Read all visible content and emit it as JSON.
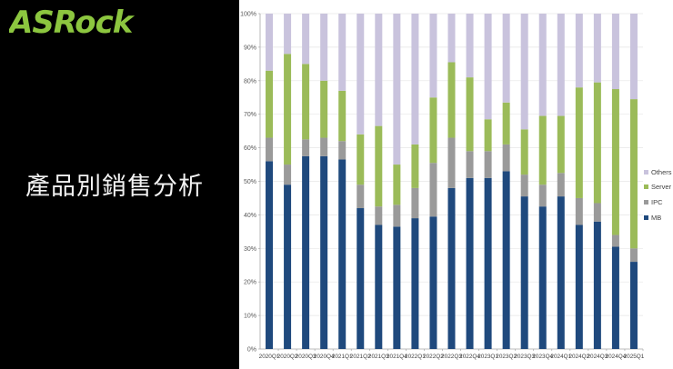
{
  "logo": {
    "text": "ASRock",
    "color": "#8cc63f"
  },
  "slide": {
    "title": "產品別銷售分析"
  },
  "colors": {
    "background": "#000000",
    "chart_background": "#ffffff",
    "MB": "#1f497d",
    "IPC": "#9a9a9a",
    "Server": "#9bbb59",
    "Others": "#c9c3dd"
  },
  "chart_data": {
    "type": "bar",
    "stacked": true,
    "percent_stacked": true,
    "title": "",
    "xlabel": "",
    "ylabel": "",
    "ylim": [
      0,
      100
    ],
    "yticks": [
      "0%",
      "10%",
      "20%",
      "30%",
      "40%",
      "50%",
      "60%",
      "70%",
      "80%",
      "90%",
      "100%"
    ],
    "grid": true,
    "legend_position": "right",
    "categories": [
      "2020Q1",
      "2020Q2",
      "2020Q3",
      "2020Q4",
      "2021Q1",
      "2021Q2",
      "2021Q3",
      "2021Q4",
      "2022Q1",
      "2022Q2",
      "2022Q3",
      "2022Q4",
      "2023Q1",
      "2023Q2",
      "2023Q3",
      "2023Q4",
      "2024Q1",
      "2024Q2",
      "2024Q3",
      "2024Q4",
      "2025Q1"
    ],
    "series": [
      {
        "name": "MB",
        "color": "#1f497d",
        "values": [
          56,
          49,
          57.5,
          57.5,
          56.5,
          42,
          37,
          36.5,
          39,
          39.5,
          48,
          51,
          51,
          53,
          45.5,
          42.5,
          45.5,
          37,
          38,
          30.5,
          26
        ]
      },
      {
        "name": "IPC",
        "color": "#9a9a9a",
        "values": [
          7,
          6,
          5,
          5.5,
          5.5,
          7,
          5.5,
          6.5,
          9,
          16,
          15,
          8,
          8,
          8,
          6.5,
          6.5,
          7,
          8,
          5.5,
          3.5,
          4
        ]
      },
      {
        "name": "Server",
        "color": "#9bbb59",
        "values": [
          20,
          33,
          22.5,
          17,
          15,
          15,
          24,
          12,
          13,
          19.5,
          22.5,
          22,
          9.5,
          12.5,
          13.5,
          20.5,
          17,
          33,
          36,
          43.5,
          44.5
        ]
      },
      {
        "name": "Others",
        "color": "#c9c3dd",
        "values": [
          17,
          12,
          15,
          20,
          23,
          36,
          33.5,
          45,
          39,
          25,
          14.5,
          19,
          31.5,
          26.5,
          34.5,
          30.5,
          30.5,
          22,
          20.5,
          22.5,
          25.5
        ]
      }
    ],
    "legend": [
      "Others",
      "Server",
      "IPC",
      "MB"
    ]
  }
}
